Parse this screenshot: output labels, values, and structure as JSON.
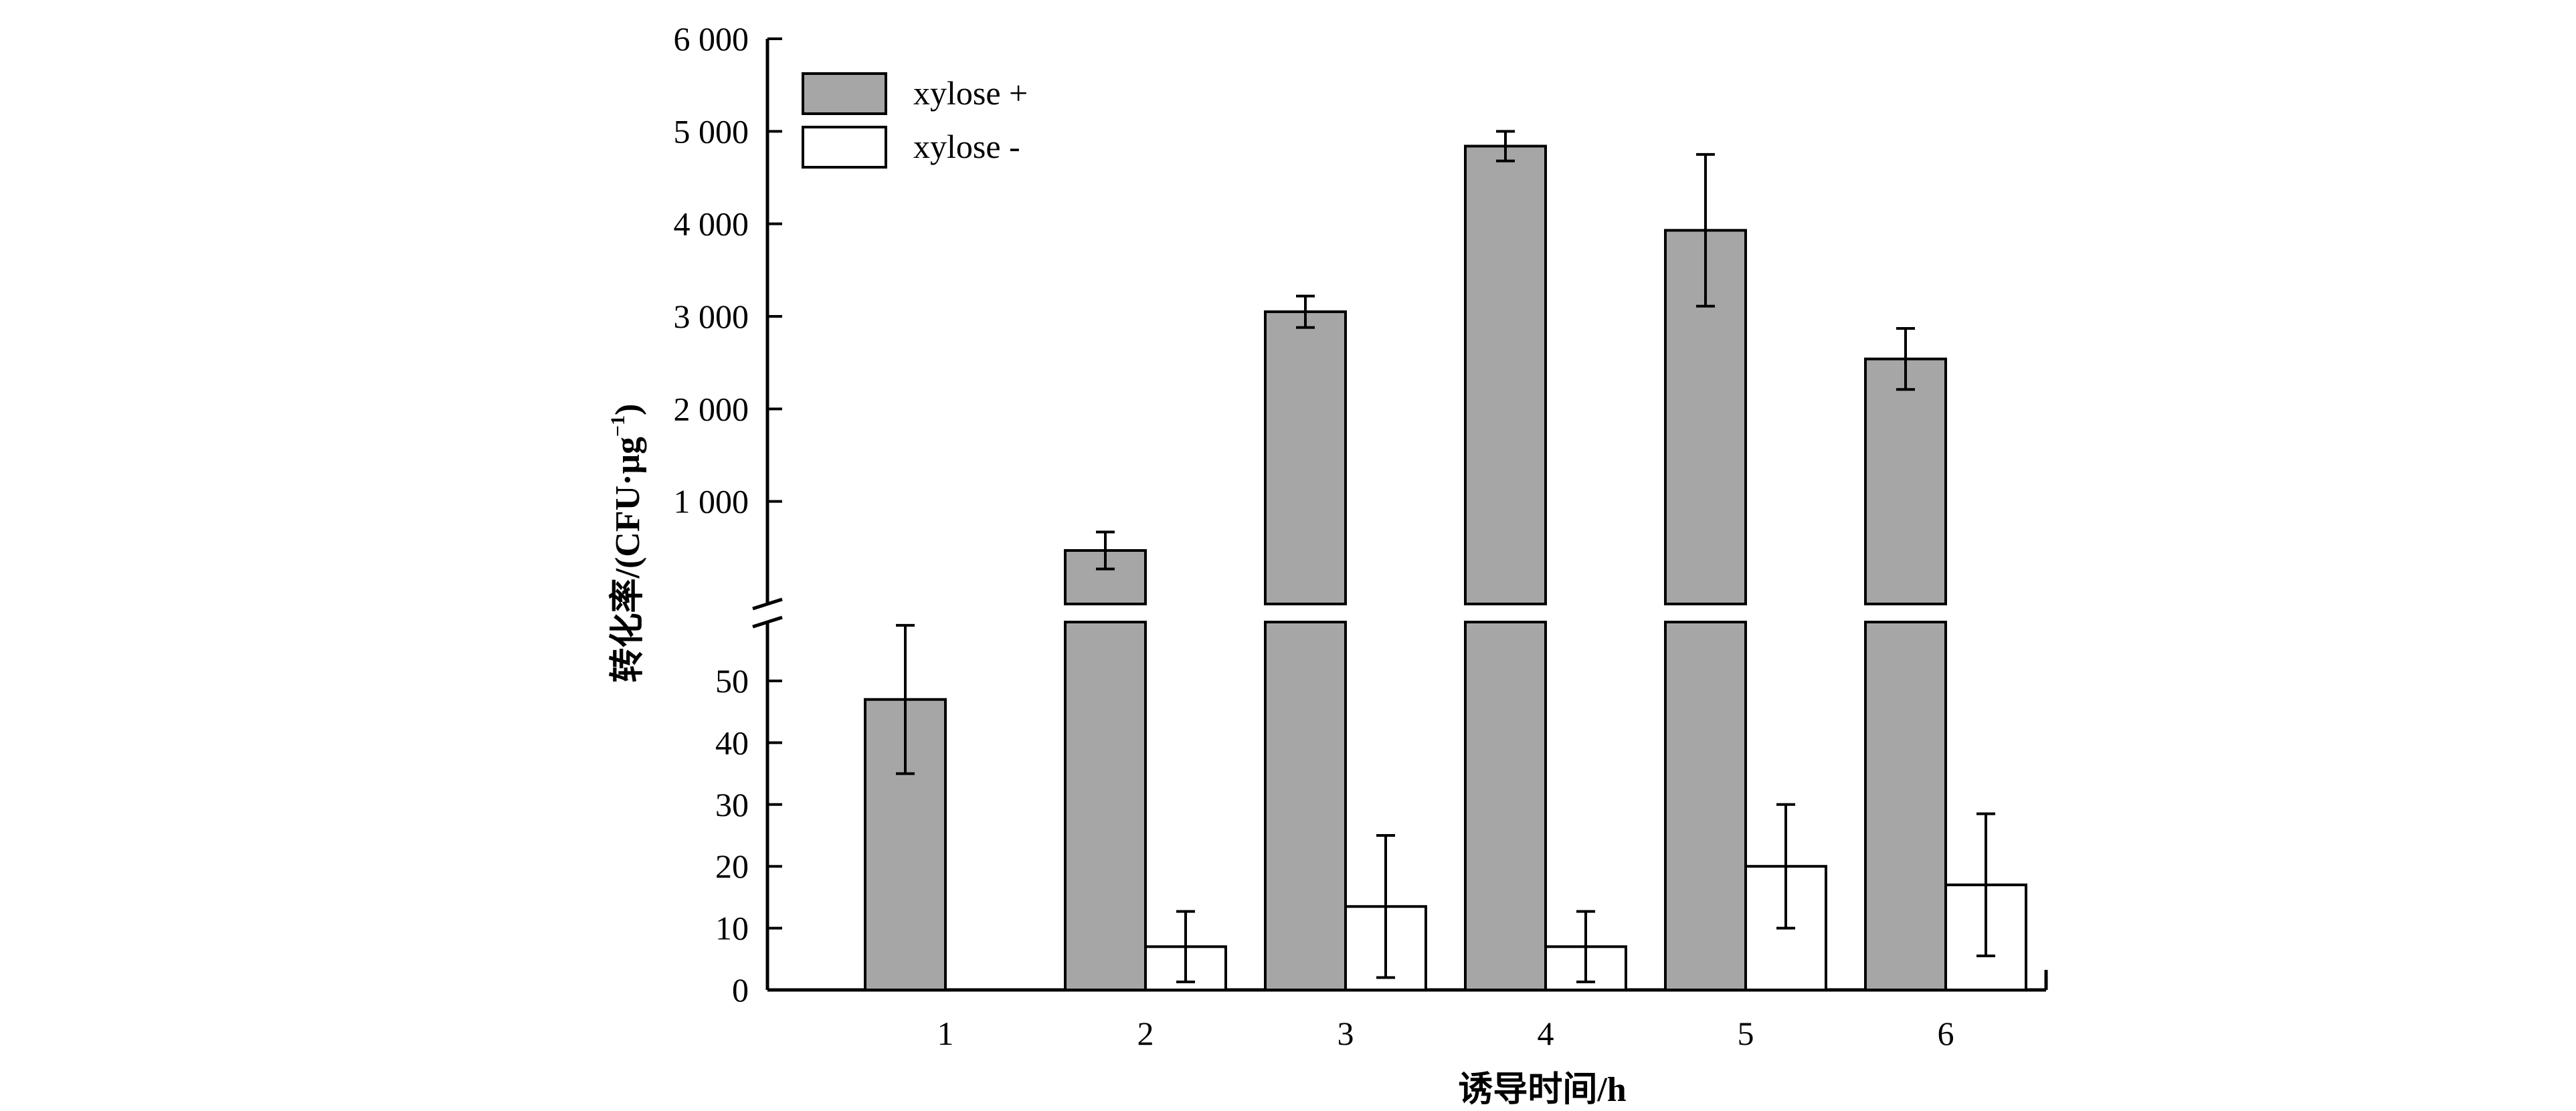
{
  "chart_data": {
    "type": "bar",
    "xlabel": "诱导时间/h",
    "ylabel": "转化率/(CFU·μg",
    "ylabel_sup": "−1",
    "ylabel_close": ")",
    "categories": [
      "1",
      "2",
      "3",
      "4",
      "5",
      "6"
    ],
    "axis_break": true,
    "y_lower": {
      "ylim": [
        0,
        50
      ],
      "ticks": [
        0,
        10,
        20,
        30,
        40,
        50
      ],
      "tick_labels": [
        "0",
        "10",
        "20",
        "30",
        "40",
        "50"
      ]
    },
    "y_upper": {
      "ylim": [
        0,
        6000
      ],
      "ticks": [
        1000,
        2000,
        3000,
        4000,
        5000,
        6000
      ],
      "tick_labels": [
        "1 000",
        "2 000",
        "3 000",
        "4 000",
        "5 000",
        "6 000"
      ]
    },
    "legend": {
      "position": "top-left",
      "entries": [
        "xylose +",
        "xylose -"
      ]
    },
    "series": [
      {
        "name": "xylose +",
        "color": "#a6a6a6",
        "values": [
          47,
          470,
          3050,
          4840,
          3930,
          2540
        ],
        "errors": [
          12,
          200,
          170,
          160,
          820,
          330
        ]
      },
      {
        "name": "xylose -",
        "color": "#ffffff",
        "values": [
          0,
          7,
          13.5,
          7,
          20,
          17
        ],
        "errors": [
          0,
          5.7,
          11.5,
          5.7,
          10,
          11.5
        ]
      }
    ]
  }
}
